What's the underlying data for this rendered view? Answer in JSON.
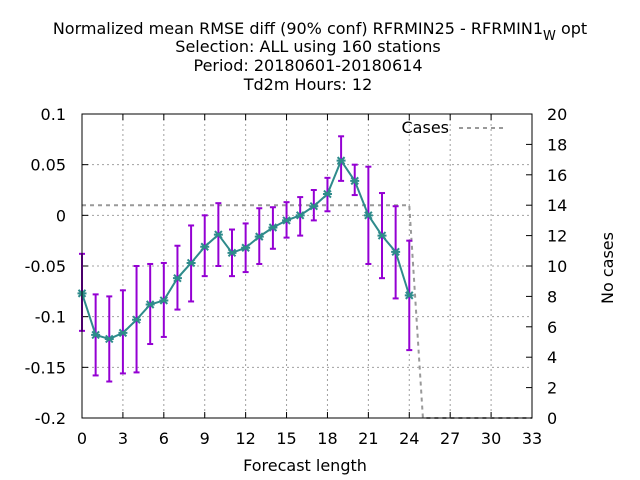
{
  "chart_data": {
    "type": "line",
    "title_lines": [
      "Normalized mean RMSE diff (90% conf) RFRMIN25 - RFRMIN1",
      "Selection: ALL using   160 stations",
      "Period: 20180601-20180614",
      "Td2m   Hours:  12"
    ],
    "title_subscript": "W",
    "title_suffix": "opt",
    "xlabel": "Forecast length",
    "ylabel_right": "No cases",
    "xlim": [
      0,
      33
    ],
    "ylim": [
      -0.2,
      0.1
    ],
    "y2lim": [
      0,
      20
    ],
    "xticks": [
      "0",
      "3",
      "6",
      "9",
      "12",
      "15",
      "18",
      "21",
      "24",
      "27",
      "30",
      "33"
    ],
    "yticks": [
      "0.1",
      "0.05",
      "0",
      "-0.05",
      "-0.1",
      "-0.15",
      "-0.2"
    ],
    "y2ticks": [
      "20",
      "18",
      "16",
      "14",
      "12",
      "10",
      "8",
      "6",
      "4",
      "2",
      "0"
    ],
    "grid": true,
    "legend": "top-right",
    "colors": {
      "line": "#2e8b8b",
      "errorbar": "#9400d3",
      "cases": "#999999"
    },
    "series": [
      {
        "kind": "main",
        "x": [
          0,
          1,
          2,
          3,
          4,
          5,
          6,
          7,
          8,
          9,
          10,
          11,
          12,
          13,
          14,
          15,
          16,
          17,
          18,
          19,
          20,
          21,
          22,
          23,
          24
        ],
        "y": [
          -0.077,
          -0.118,
          -0.122,
          -0.116,
          -0.103,
          -0.088,
          -0.084,
          -0.062,
          -0.047,
          -0.031,
          -0.019,
          -0.037,
          -0.032,
          -0.021,
          -0.012,
          -0.005,
          0,
          0.009,
          0.021,
          0.054,
          0.034,
          0,
          -0.02,
          -0.036,
          -0.079
        ],
        "ylow": [
          -0.114,
          -0.158,
          -0.164,
          -0.156,
          -0.155,
          -0.127,
          -0.12,
          -0.093,
          -0.085,
          -0.06,
          -0.05,
          -0.06,
          -0.056,
          -0.048,
          -0.033,
          -0.022,
          -0.02,
          -0.005,
          0.004,
          0.034,
          0.02,
          -0.048,
          -0.062,
          -0.082,
          -0.133
        ],
        "yhigh": [
          -0.038,
          -0.078,
          -0.08,
          -0.074,
          -0.05,
          -0.048,
          -0.047,
          -0.03,
          -0.01,
          0,
          0.012,
          -0.014,
          -0.008,
          0.007,
          0.008,
          0.013,
          0.018,
          0.025,
          0.037,
          0.078,
          0.05,
          0.048,
          0.022,
          0.009,
          -0.025
        ]
      },
      {
        "kind": "cases",
        "name": "Cases",
        "x": [
          0,
          24,
          25,
          33
        ],
        "y": [
          14,
          14,
          0,
          0
        ]
      }
    ]
  }
}
